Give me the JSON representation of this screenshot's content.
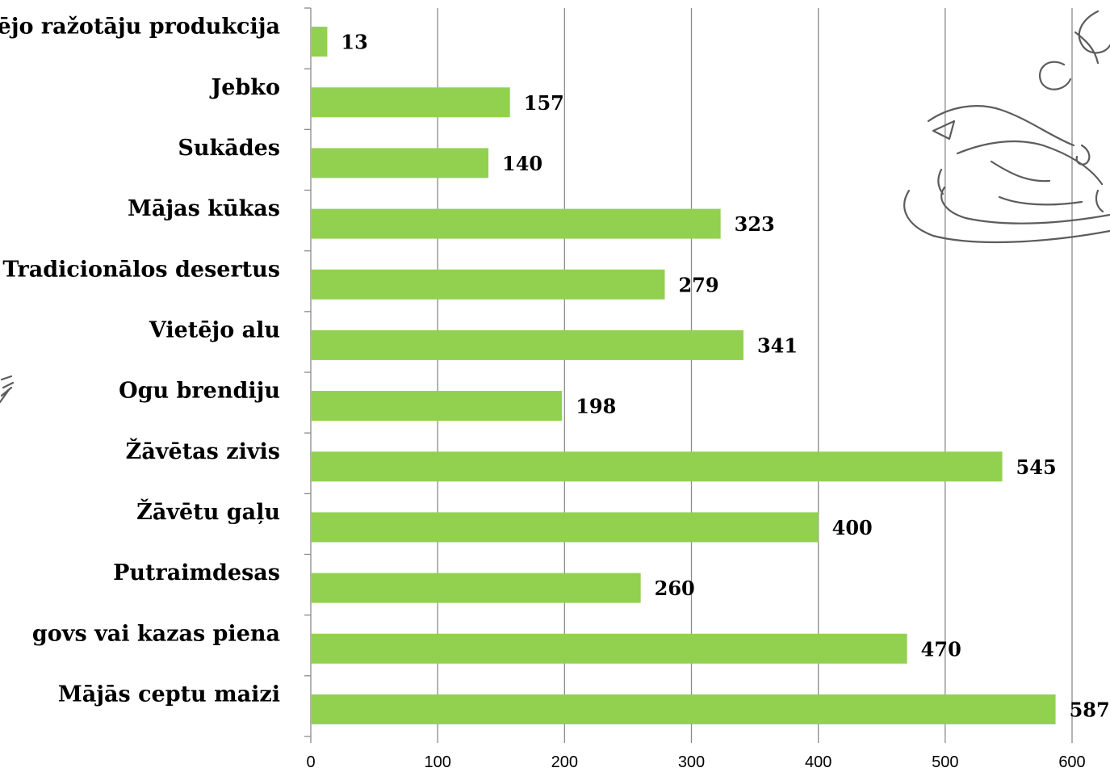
{
  "chart_data": {
    "type": "bar",
    "orientation": "horizontal",
    "categories": [
      "Mājās ceptu maizi",
      "govs vai kazas piena",
      "Putraimdesas",
      "Žāvētu gaļu",
      "Žāvētas zivis",
      "Ogu brendiju",
      "Vietējo alu",
      "Tradicionālos desertus",
      "Mājas kūkas",
      "Sukādes",
      "Jebko",
      "Vietējo ražotāju produkcija"
    ],
    "values": [
      587,
      470,
      260,
      400,
      545,
      198,
      341,
      279,
      323,
      140,
      157,
      13
    ],
    "value_labels": [
      "587",
      "470",
      "260",
      "400",
      "545",
      "198",
      "341",
      "279",
      "323",
      "140",
      "157",
      "13"
    ],
    "xticks": [
      "0",
      "100",
      "200",
      "300",
      "400",
      "500",
      "600"
    ],
    "xlim": [
      0,
      600
    ],
    "title": "",
    "xlabel": "",
    "ylabel": "",
    "grid": true,
    "bar_color": "#92d050"
  }
}
